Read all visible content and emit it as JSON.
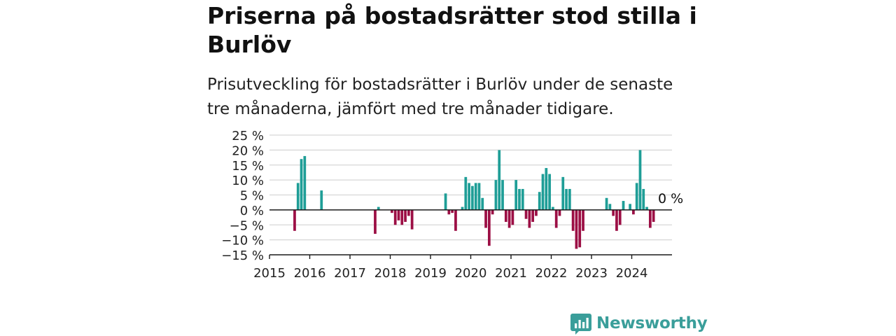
{
  "title": "Priserna på bostadsrätter stod stilla i Burlöv",
  "subtitle": "Prisutveckling för bostadsrätter i Burlöv under de senaste tre månaderna, jämfört med tre månader tidigare.",
  "brand": {
    "name": "Newsworthy",
    "icon": "newsworthy-logo-icon",
    "color": "#3a9e9a"
  },
  "chart_data": {
    "type": "bar",
    "x_start": "2015-01",
    "x_end": "2024-12",
    "ylim": [
      -15,
      25
    ],
    "yticks": [
      25,
      20,
      15,
      10,
      5,
      0,
      -5,
      -10,
      -15
    ],
    "ytick_labels": [
      "25 %",
      "20 %",
      "15 %",
      "10 %",
      "5 %",
      "0 %",
      "−5 %",
      "−10 %",
      "−15 %"
    ],
    "xtick_labels": [
      "2015",
      "2016",
      "2017",
      "2018",
      "2019",
      "2020",
      "2021",
      "2022",
      "2023",
      "2024"
    ],
    "grid": true,
    "colors": {
      "positive": "#1f9e97",
      "negative": "#9c0f45"
    },
    "annotation": {
      "text": "0 %",
      "date": "2024-10",
      "value": 0
    },
    "x": [
      "2015-08",
      "2015-09",
      "2015-10",
      "2015-11",
      "2016-04",
      "2017-08",
      "2017-09",
      "2018-01",
      "2018-02",
      "2018-03",
      "2018-04",
      "2018-05",
      "2018-06",
      "2018-07",
      "2019-05",
      "2019-06",
      "2019-07",
      "2019-08",
      "2019-10",
      "2019-11",
      "2019-12",
      "2020-01",
      "2020-02",
      "2020-03",
      "2020-04",
      "2020-05",
      "2020-06",
      "2020-07",
      "2020-08",
      "2020-09",
      "2020-10",
      "2020-11",
      "2020-12",
      "2021-01",
      "2021-02",
      "2021-03",
      "2021-04",
      "2021-05",
      "2021-06",
      "2021-07",
      "2021-08",
      "2021-09",
      "2021-10",
      "2021-11",
      "2021-12",
      "2022-01",
      "2022-02",
      "2022-03",
      "2022-04",
      "2022-05",
      "2022-06",
      "2022-07",
      "2022-08",
      "2022-09",
      "2022-10",
      "2023-05",
      "2023-06",
      "2023-07",
      "2023-08",
      "2023-09",
      "2023-10",
      "2023-11",
      "2023-12",
      "2024-01",
      "2024-02",
      "2024-03",
      "2024-04",
      "2024-05",
      "2024-06",
      "2024-07",
      "2024-08"
    ],
    "values": [
      -7,
      9,
      17,
      18,
      6.5,
      -8,
      1,
      -1,
      -5,
      -3.5,
      -5,
      -4,
      -2,
      -6.5,
      5.5,
      -1.5,
      -1,
      -7,
      1,
      11,
      9,
      8,
      9,
      9,
      4,
      -6,
      -12,
      -1.5,
      10,
      20,
      10,
      -4,
      -6,
      -5,
      10,
      7,
      7,
      -3,
      -6,
      -4,
      -2,
      6,
      12,
      14,
      12,
      1,
      -6,
      -2,
      11,
      7,
      7,
      -7,
      -13,
      -12.5,
      -7,
      4,
      2,
      -2,
      -7,
      -5,
      3,
      0,
      2,
      -1.5,
      9,
      20,
      7,
      1,
      -6,
      -4,
      0
    ]
  }
}
